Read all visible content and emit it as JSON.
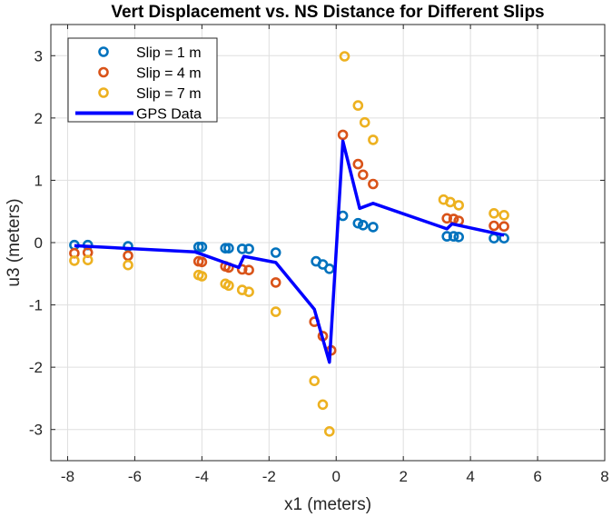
{
  "chart_data": {
    "type": "scatter",
    "title": "Vert Displacement vs. NS Distance for Different Slips",
    "xlabel": "x1 (meters)",
    "ylabel": "u3 (meters)",
    "xlim": [
      -8.5,
      8
    ],
    "ylim": [
      -3.5,
      3.5
    ],
    "xticks": [
      -8,
      -6,
      -4,
      -2,
      0,
      2,
      4,
      6,
      8
    ],
    "yticks": [
      -3,
      -2,
      -1,
      0,
      1,
      2,
      3
    ],
    "grid": true,
    "legend_position": "top-left",
    "series": [
      {
        "name": "Slip = 1 m",
        "type": "scatter",
        "color": "#0072BD",
        "points": [
          [
            -7.8,
            -0.04
          ],
          [
            -7.4,
            -0.04
          ],
          [
            -6.2,
            -0.06
          ],
          [
            -4.1,
            -0.07
          ],
          [
            -4.0,
            -0.07
          ],
          [
            -3.3,
            -0.09
          ],
          [
            -3.2,
            -0.09
          ],
          [
            -2.8,
            -0.1
          ],
          [
            -2.6,
            -0.1
          ],
          [
            -1.8,
            -0.16
          ],
          [
            -0.6,
            -0.3
          ],
          [
            -0.4,
            -0.35
          ],
          [
            -0.2,
            -0.42
          ],
          [
            0.2,
            0.43
          ],
          [
            0.65,
            0.31
          ],
          [
            0.8,
            0.28
          ],
          [
            1.1,
            0.25
          ],
          [
            3.3,
            0.1
          ],
          [
            3.5,
            0.1
          ],
          [
            3.65,
            0.09
          ],
          [
            4.7,
            0.07
          ],
          [
            5.0,
            0.07
          ]
        ]
      },
      {
        "name": "Slip = 4 m",
        "type": "scatter",
        "color": "#D95319",
        "points": [
          [
            -7.8,
            -0.17
          ],
          [
            -7.4,
            -0.16
          ],
          [
            -6.2,
            -0.21
          ],
          [
            -4.1,
            -0.3
          ],
          [
            -4.0,
            -0.31
          ],
          [
            -3.3,
            -0.38
          ],
          [
            -3.2,
            -0.4
          ],
          [
            -2.8,
            -0.43
          ],
          [
            -2.6,
            -0.44
          ],
          [
            -1.8,
            -0.64
          ],
          [
            -0.65,
            -1.27
          ],
          [
            -0.4,
            -1.5
          ],
          [
            -0.15,
            -1.73
          ],
          [
            0.2,
            1.73
          ],
          [
            0.65,
            1.26
          ],
          [
            0.8,
            1.09
          ],
          [
            1.1,
            0.94
          ],
          [
            3.3,
            0.39
          ],
          [
            3.5,
            0.38
          ],
          [
            3.65,
            0.35
          ],
          [
            4.7,
            0.27
          ],
          [
            5.0,
            0.26
          ]
        ]
      },
      {
        "name": "Slip = 7 m",
        "type": "scatter",
        "color": "#EDB120",
        "points": [
          [
            -7.8,
            -0.29
          ],
          [
            -7.4,
            -0.28
          ],
          [
            -6.2,
            -0.36
          ],
          [
            -4.1,
            -0.52
          ],
          [
            -4.0,
            -0.54
          ],
          [
            -3.3,
            -0.66
          ],
          [
            -3.2,
            -0.69
          ],
          [
            -2.8,
            -0.76
          ],
          [
            -2.6,
            -0.79
          ],
          [
            -1.8,
            -1.11
          ],
          [
            -0.65,
            -2.22
          ],
          [
            -0.4,
            -2.6
          ],
          [
            -0.2,
            -3.03
          ],
          [
            0.25,
            2.99
          ],
          [
            0.65,
            2.2
          ],
          [
            0.85,
            1.93
          ],
          [
            1.1,
            1.65
          ],
          [
            3.2,
            0.69
          ],
          [
            3.4,
            0.65
          ],
          [
            3.65,
            0.6
          ],
          [
            4.7,
            0.47
          ],
          [
            5.0,
            0.44
          ]
        ]
      },
      {
        "name": "GPS Data",
        "type": "line",
        "color": "#0000FF",
        "points": [
          [
            -7.8,
            -0.05
          ],
          [
            -4.2,
            -0.15
          ],
          [
            -2.9,
            -0.4
          ],
          [
            -2.75,
            -0.22
          ],
          [
            -1.8,
            -0.32
          ],
          [
            -0.65,
            -1.07
          ],
          [
            -0.2,
            -1.92
          ],
          [
            0.2,
            1.63
          ],
          [
            0.7,
            0.55
          ],
          [
            1.1,
            0.63
          ],
          [
            3.3,
            0.22
          ],
          [
            3.45,
            0.3
          ],
          [
            5.0,
            0.12
          ]
        ]
      }
    ]
  }
}
